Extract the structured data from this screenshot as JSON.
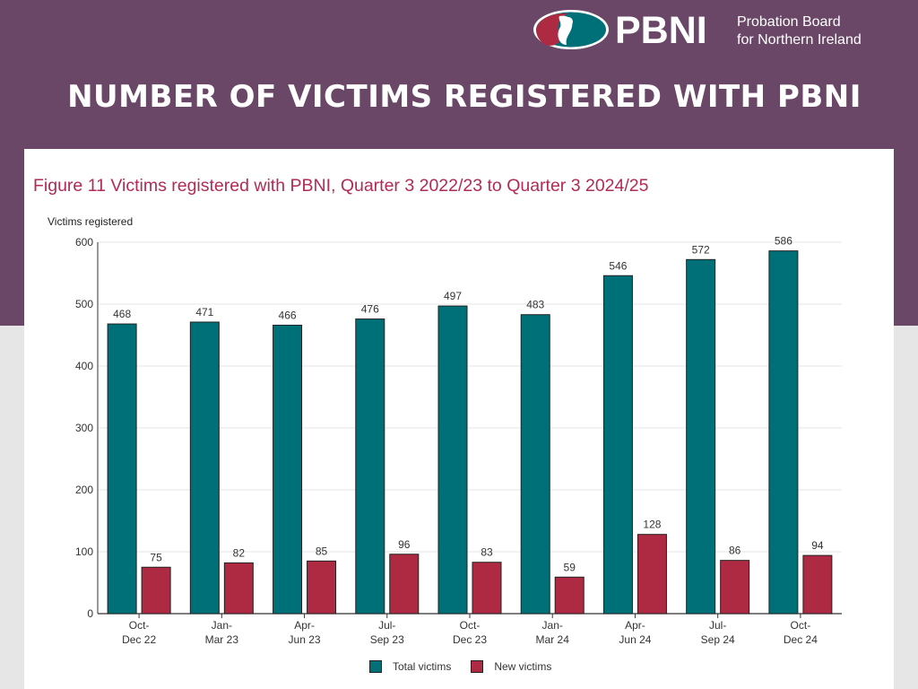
{
  "header": {
    "logo_text": "PBNI",
    "logo_sub_line1": "Probation Board",
    "logo_sub_line2": "for Northern Ireland",
    "title": "NUMBER OF VICTIMS REGISTERED WITH PBNI"
  },
  "colors": {
    "header_bg": "#6a4766",
    "total": "#007078",
    "new": "#ad2a42",
    "title_red": "#b22a55"
  },
  "chart_data": {
    "type": "bar",
    "title": "Figure 11 Victims registered with PBNI, Quarter 3 2022/23 to Quarter 3 2024/25",
    "ylabel": "Victims registered",
    "xlabel": "",
    "ylim": [
      0,
      600
    ],
    "yticks": [
      0,
      100,
      200,
      300,
      400,
      500,
      600
    ],
    "categories": [
      [
        "Oct-",
        "Dec 22"
      ],
      [
        "Jan-",
        "Mar 23"
      ],
      [
        "Apr-",
        "Jun 23"
      ],
      [
        "Jul-",
        "Sep 23"
      ],
      [
        "Oct-",
        "Dec 23"
      ],
      [
        "Jan-",
        "Mar 24"
      ],
      [
        "Apr-",
        "Jun 24"
      ],
      [
        "Jul-",
        "Sep 24"
      ],
      [
        "Oct-",
        "Dec 24"
      ]
    ],
    "series": [
      {
        "name": "Total victims",
        "values": [
          468,
          471,
          466,
          476,
          497,
          483,
          546,
          572,
          586
        ]
      },
      {
        "name": "New victims",
        "values": [
          75,
          82,
          85,
          96,
          83,
          59,
          128,
          86,
          94
        ]
      }
    ],
    "grid": true,
    "legend_position": "bottom"
  }
}
